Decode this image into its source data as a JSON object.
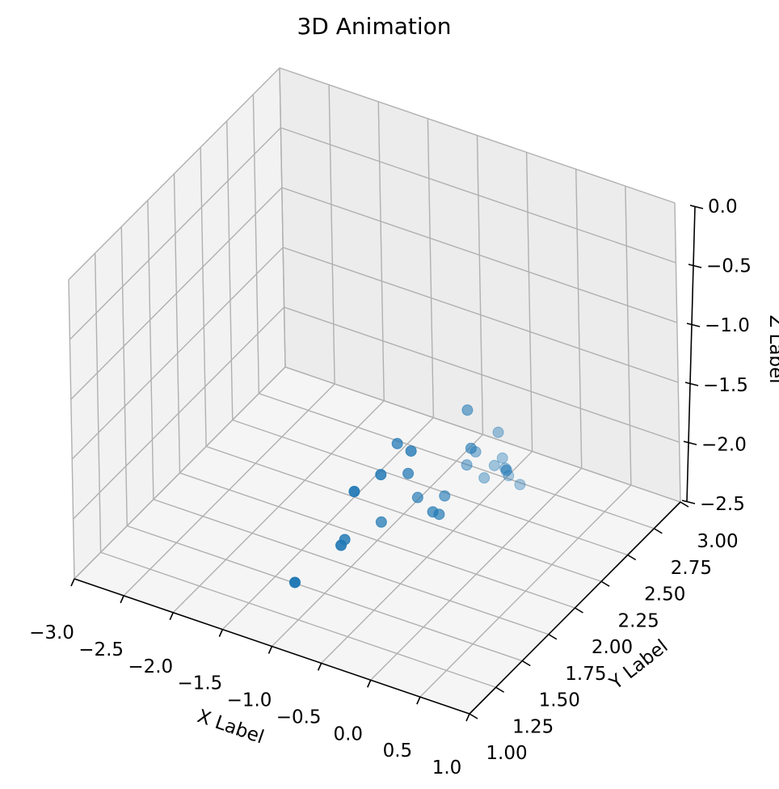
{
  "chart_data": {
    "type": "scatter",
    "title": "3D Animation",
    "xlabel": "X Label",
    "ylabel": "Y Label",
    "zlabel": "Z Label",
    "xlim": [
      -3.0,
      1.0
    ],
    "ylim": [
      1.0,
      3.0
    ],
    "zlim": [
      -2.5,
      0.0
    ],
    "xticks": [
      "−3.0",
      "−2.5",
      "−2.0",
      "−1.5",
      "−1.0",
      "−0.5",
      "0.0",
      "0.5",
      "1.0"
    ],
    "yticks": [
      "1.00",
      "1.25",
      "1.50",
      "1.75",
      "2.00",
      "2.25",
      "2.50",
      "2.75",
      "3.00"
    ],
    "zticks": [
      "−2.5",
      "−2.0",
      "−1.5",
      "−1.0",
      "−0.5",
      "0.0"
    ],
    "grid": true,
    "color": "#1f77b4",
    "points": [
      {
        "x": -0.18,
        "y": 1.58,
        "z": -1.15
      },
      {
        "x": -0.45,
        "y": 1.7,
        "z": -1.27
      },
      {
        "x": -0.35,
        "y": 1.2,
        "z": -1.2
      },
      {
        "x": -0.35,
        "y": 1.45,
        "z": -1.28
      },
      {
        "x": -0.2,
        "y": 2.13,
        "z": -1.3
      },
      {
        "x": -0.4,
        "y": 1.75,
        "z": -1.55
      },
      {
        "x": -0.05,
        "y": 2.02,
        "z": -1.48
      },
      {
        "x": -0.55,
        "y": 1.25,
        "z": -1.75
      },
      {
        "x": -0.2,
        "y": 1.79,
        "z": -1.85
      },
      {
        "x": -0.18,
        "y": 1.83,
        "z": -1.9
      },
      {
        "x": -0.83,
        "y": 1.07,
        "z": -1.98
      },
      {
        "x": -0.73,
        "y": 1.45,
        "z": -1.93
      },
      {
        "x": -0.65,
        "y": 1.72,
        "z": -2.0
      },
      {
        "x": -0.45,
        "y": 1.88,
        "z": -1.88
      },
      {
        "x": -0.35,
        "y": 2.04,
        "z": -1.98
      },
      {
        "x": -0.42,
        "y": 2.4,
        "z": -1.95
      },
      {
        "x": -0.35,
        "y": 2.55,
        "z": -1.9
      },
      {
        "x": -0.45,
        "y": 2.6,
        "z": -2.25
      },
      {
        "x": -0.33,
        "y": 2.59,
        "z": -2.23
      },
      {
        "x": -0.48,
        "y": 2.37,
        "z": -2.05
      },
      {
        "x": -0.45,
        "y": 2.73,
        "z": -2.45
      },
      {
        "x": -0.55,
        "y": 2.8,
        "z": -2.5
      },
      {
        "x": -0.27,
        "y": 2.67,
        "z": -2.42
      },
      {
        "x": -0.4,
        "y": 2.63,
        "z": -2.2
      },
      {
        "x": -0.48,
        "y": 2.53,
        "z": -2.3
      },
      {
        "x": -0.6,
        "y": 2.85,
        "z": -2.55
      }
    ]
  }
}
